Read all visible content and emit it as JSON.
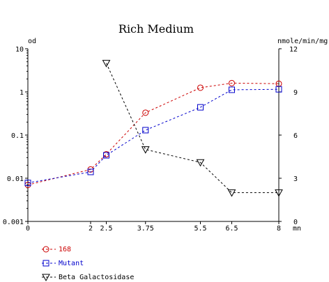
{
  "chart_data": {
    "type": "line",
    "title": "Rich Medium",
    "xlabel": "mn",
    "ylabel_left": "od",
    "ylabel_right": "nmole/min/mg",
    "x_ticks": [
      0,
      2,
      2.5,
      3.75,
      5.5,
      6.5,
      8
    ],
    "x_tick_labels": [
      "0",
      "2",
      "2.5",
      "3.75",
      "5.5",
      "6.5",
      "8"
    ],
    "xlim": [
      0,
      8
    ],
    "y_left_scale": "log",
    "y_left_lim": [
      0.001,
      10
    ],
    "y_left_ticks": [
      0.001,
      0.01,
      0.1,
      1,
      10
    ],
    "y_left_tick_labels": [
      "0.001",
      "0.01",
      "0.1",
      "1",
      "10"
    ],
    "y_right_lim": [
      0,
      12
    ],
    "y_right_ticks": [
      0,
      3,
      6,
      9,
      12
    ],
    "y_right_tick_labels": [
      "0",
      "3",
      "6",
      "9",
      "12"
    ],
    "legend_position": "bottom-left",
    "series": [
      {
        "name": "168",
        "axis": "left",
        "color": "#cc0000",
        "marker": "circle",
        "dash": "dashed",
        "x": [
          0,
          2,
          2.5,
          3.75,
          5.5,
          6.5,
          8
        ],
        "y": [
          0.007,
          0.016,
          0.036,
          0.33,
          1.25,
          1.6,
          1.55
        ]
      },
      {
        "name": "Mutant",
        "axis": "left",
        "color": "#0000cc",
        "marker": "square",
        "dash": "dashed",
        "x": [
          0,
          2,
          2.5,
          3.75,
          5.5,
          6.5,
          8
        ],
        "y": [
          0.0078,
          0.014,
          0.034,
          0.13,
          0.44,
          1.12,
          1.15
        ]
      },
      {
        "name": "Beta Galactosidase",
        "axis": "right",
        "color": "#000000",
        "marker": "triangle-down",
        "dash": "dashed",
        "x": [
          2.5,
          3.75,
          5.5,
          6.5,
          8
        ],
        "y": [
          11,
          5,
          4.1,
          2,
          2
        ]
      }
    ]
  }
}
